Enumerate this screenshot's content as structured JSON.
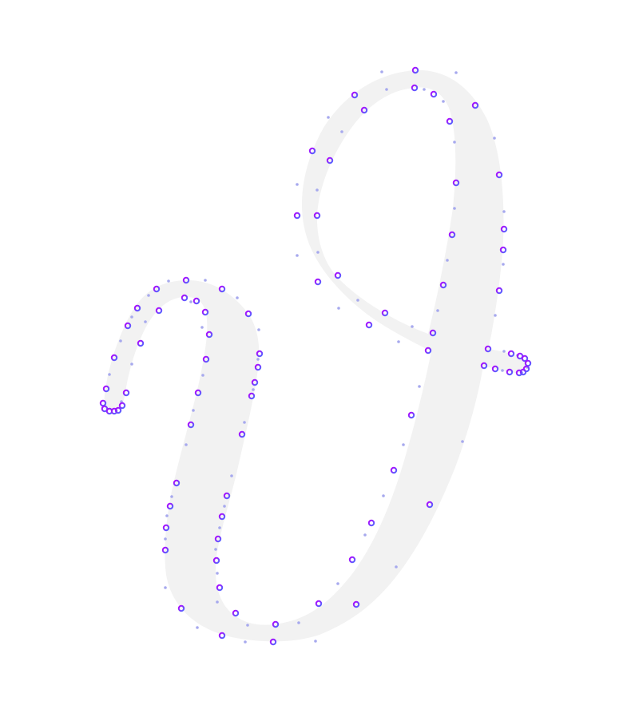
{
  "glyph": {
    "fill_color": "#f2f2f2",
    "anchor_gradient": [
      "#b400ff",
      "#4d6bff"
    ],
    "handle_color": "#a7a9ee"
  }
}
